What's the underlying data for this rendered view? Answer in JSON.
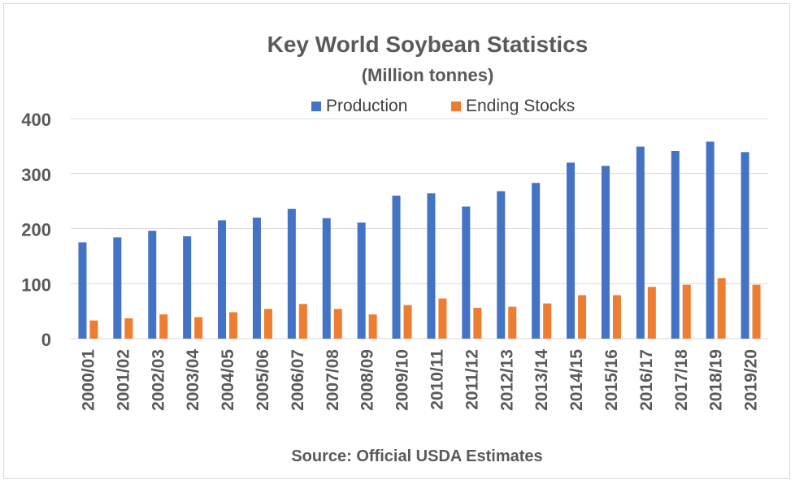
{
  "chart_data": {
    "type": "bar",
    "title": "Key World Soybean Statistics",
    "subtitle": "(Million tonnes)",
    "source": "Source: Official USDA Estimates",
    "ylim": [
      0,
      400
    ],
    "yticks": [
      "0",
      "100",
      "200",
      "300",
      "400"
    ],
    "grid": true,
    "legend_position": "top",
    "categories": [
      "2000/01",
      "2001/02",
      "2002/03",
      "2003/04",
      "2004/05",
      "2005/06",
      "2006/07",
      "2007/08",
      "2008/09",
      "2009/10",
      "2010/11",
      "2011/12",
      "2012/13",
      "2013/14",
      "2014/15",
      "2015/16",
      "2016/17",
      "2017/18",
      "2018/19",
      "2019/20"
    ],
    "series": [
      {
        "name": "Production",
        "color": "#4472c4",
        "values": [
          175,
          184,
          196,
          186,
          215,
          220,
          236,
          219,
          211,
          260,
          264,
          240,
          268,
          283,
          320,
          314,
          349,
          341,
          358,
          339
        ]
      },
      {
        "name": "Ending Stocks",
        "color": "#ed7d31",
        "values": [
          33,
          37,
          44,
          39,
          48,
          54,
          63,
          54,
          44,
          61,
          73,
          56,
          58,
          64,
          79,
          79,
          94,
          98,
          110,
          98
        ]
      }
    ]
  }
}
